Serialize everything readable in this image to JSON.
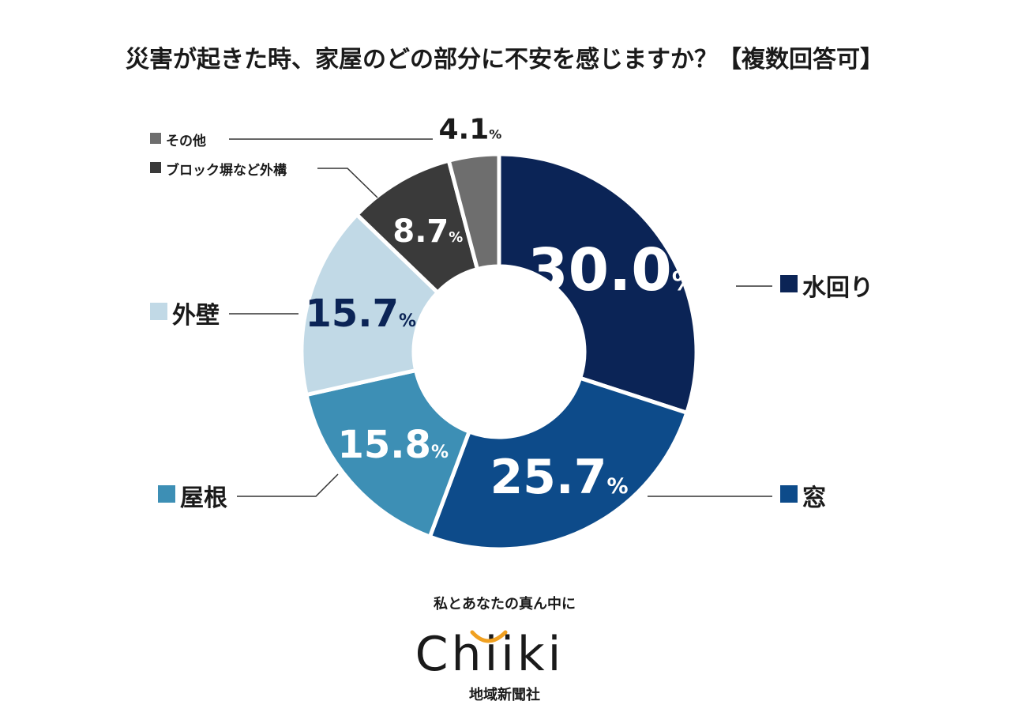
{
  "chart_data": {
    "type": "pie",
    "title": "災害が起きた時、家屋のどの部分に不安を感じますか？【複数回答可】",
    "slices": [
      {
        "label": "水回り",
        "value": 30.0,
        "display": "30.0",
        "color": "#0b2456",
        "label_color": "#ffffff"
      },
      {
        "label": "窓",
        "value": 25.7,
        "display": "25.7",
        "color": "#0d4b8a",
        "label_color": "#ffffff"
      },
      {
        "label": "屋根",
        "value": 15.8,
        "display": "15.8",
        "color": "#3d8fb5",
        "label_color": "#ffffff"
      },
      {
        "label": "外壁",
        "value": 15.7,
        "display": "15.7",
        "color": "#c1d9e6",
        "label_color": "#0b2456"
      },
      {
        "label": "ブロック塀など外構",
        "value": 8.7,
        "display": "8.7",
        "color": "#3a3a3a",
        "label_color": "#ffffff"
      },
      {
        "label": "その他",
        "value": 4.1,
        "display": "4.1",
        "color": "#6e6e6e",
        "label_color": "#1a1a1a"
      }
    ],
    "unit": "%"
  },
  "brand": {
    "tagline": "私とあなたの真ん中に",
    "logo_text": "Chiiki",
    "company": "地域新聞社",
    "accent": "#f0a020"
  }
}
